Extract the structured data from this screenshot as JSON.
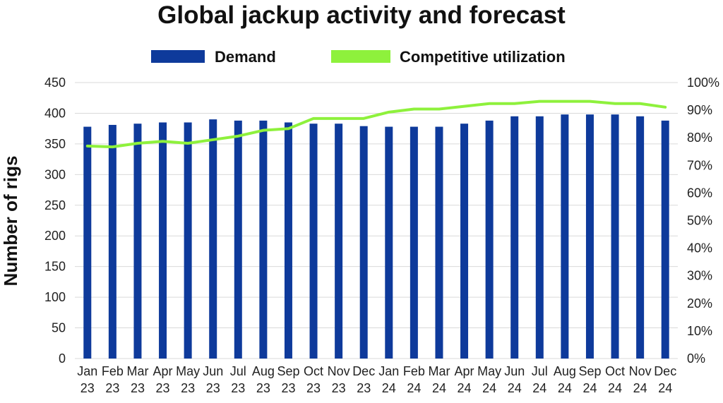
{
  "chart_data": {
    "type": "bar",
    "title": "Global jackup activity and forecast",
    "ylabel": "Number of rigs",
    "ylabel_right": "",
    "xlabel": "",
    "ylim": [
      0,
      450
    ],
    "y_ticks": [
      "0",
      "50",
      "100",
      "150",
      "200",
      "250",
      "300",
      "350",
      "400",
      "450"
    ],
    "ylim_right": [
      0,
      100
    ],
    "y_ticks_right": [
      "0%",
      "10%",
      "20%",
      "30%",
      "40%",
      "50%",
      "60%",
      "70%",
      "80%",
      "90%",
      "100%"
    ],
    "grid": true,
    "legend_position": "top",
    "categories": [
      [
        "Jan",
        "23"
      ],
      [
        "Feb",
        "23"
      ],
      [
        "Mar",
        "23"
      ],
      [
        "Apr",
        "23"
      ],
      [
        "May",
        "23"
      ],
      [
        "Jun",
        "23"
      ],
      [
        "Jul",
        "23"
      ],
      [
        "Aug",
        "23"
      ],
      [
        "Sep",
        "23"
      ],
      [
        "Oct",
        "23"
      ],
      [
        "Nov",
        "23"
      ],
      [
        "Dec",
        "23"
      ],
      [
        "Jan",
        "24"
      ],
      [
        "Feb",
        "24"
      ],
      [
        "Mar",
        "24"
      ],
      [
        "Apr",
        "24"
      ],
      [
        "May",
        "24"
      ],
      [
        "Jun",
        "24"
      ],
      [
        "Jul",
        "24"
      ],
      [
        "Aug",
        "24"
      ],
      [
        "Sep",
        "24"
      ],
      [
        "Oct",
        "24"
      ],
      [
        "Nov",
        "24"
      ],
      [
        "Dec",
        "24"
      ]
    ],
    "series": [
      {
        "name": "Demand",
        "type": "bar",
        "axis": "left",
        "color": "#0e3a9b",
        "values": [
          378,
          381,
          383,
          385,
          385,
          390,
          388,
          388,
          385,
          383,
          383,
          379,
          378,
          378,
          378,
          383,
          388,
          395,
          395,
          398,
          398,
          398,
          395,
          388
        ]
      },
      {
        "name": "Competitive utilization",
        "type": "line",
        "axis": "right",
        "color": "#8ef13c",
        "values": [
          77,
          76.7,
          78,
          78.7,
          78,
          79.3,
          80.6,
          82.7,
          83.3,
          87,
          87,
          87,
          89.3,
          90.4,
          90.4,
          91.4,
          92.4,
          92.4,
          93.2,
          93.2,
          93.2,
          92.4,
          92.4,
          91.1
        ]
      }
    ]
  }
}
